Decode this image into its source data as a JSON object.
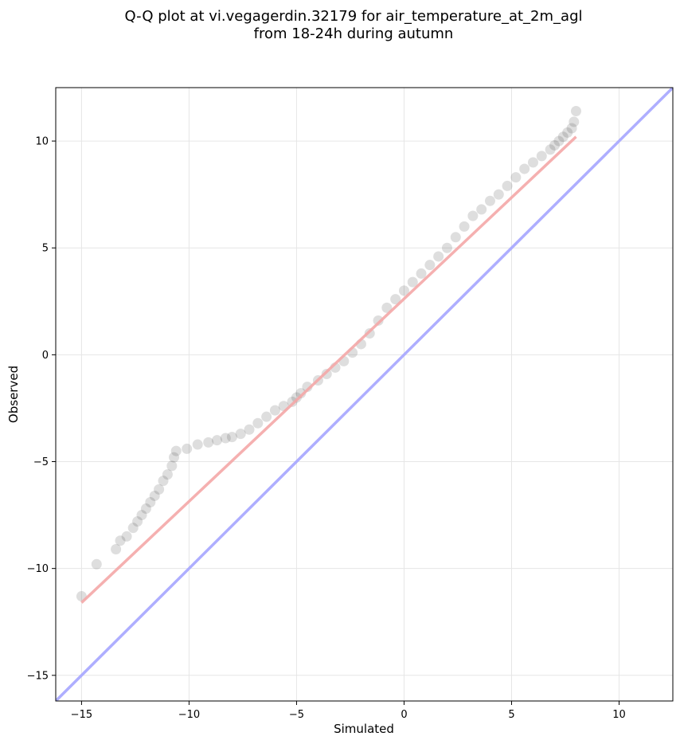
{
  "chart_data": {
    "type": "scatter",
    "title_line1": "Q-Q plot at vi.vegagerdin.32179 for air_temperature_at_2m_agl",
    "title_line2": "from 18-24h during autumn",
    "xlabel": "Simulated",
    "ylabel": "Observed",
    "xlim": [
      -16.2,
      12.5
    ],
    "ylim": [
      -16.2,
      12.5
    ],
    "xticks": [
      -15,
      -10,
      -5,
      0,
      5,
      10
    ],
    "yticks": [
      -15,
      -10,
      -5,
      0,
      5,
      10
    ],
    "xtick_labels": [
      "−15",
      "−10",
      "−5",
      "0",
      "5",
      "10"
    ],
    "ytick_labels": [
      "−15",
      "−10",
      "−5",
      "0",
      "5",
      "10"
    ],
    "grid": true,
    "identity_line_color": "#aaaaff",
    "fit_line_color": "#f4a7a7",
    "marker_color": "#333333",
    "fit_line": {
      "x": [
        -15.0,
        8.0
      ],
      "y": [
        -11.6,
        10.2
      ]
    },
    "identity_line": {
      "x": [
        -16.2,
        12.5
      ],
      "y": [
        -16.2,
        12.5
      ]
    },
    "series": [
      {
        "x": [
          -15.0,
          -14.3,
          -13.4,
          -13.2,
          -12.9,
          -12.6,
          -12.4,
          -12.2,
          -12.0,
          -11.8,
          -11.6,
          -11.4,
          -11.2,
          -11.0,
          -10.8,
          -10.7,
          -10.6,
          -10.1,
          -9.6,
          -9.1,
          -8.7,
          -8.3,
          -8.0,
          -7.6,
          -7.2,
          -6.8,
          -6.4,
          -6.0,
          -5.6,
          -5.2,
          -5.0,
          -4.8,
          -4.5,
          -4.0,
          -3.6,
          -3.2,
          -2.8,
          -2.4,
          -2.0,
          -1.6,
          -1.2,
          -0.8,
          -0.4,
          0.0,
          0.4,
          0.8,
          1.2,
          1.6,
          2.0,
          2.4,
          2.8,
          3.2,
          3.6,
          4.0,
          4.4,
          4.8,
          5.2,
          5.6,
          6.0,
          6.4,
          6.8,
          7.0,
          7.2,
          7.4,
          7.6,
          7.8,
          7.9,
          8.0
        ],
        "y": [
          -11.3,
          -9.8,
          -9.1,
          -8.7,
          -8.5,
          -8.1,
          -7.8,
          -7.5,
          -7.2,
          -6.9,
          -6.6,
          -6.3,
          -5.9,
          -5.6,
          -5.2,
          -4.8,
          -4.5,
          -4.4,
          -4.2,
          -4.1,
          -4.0,
          -3.9,
          -3.85,
          -3.7,
          -3.5,
          -3.2,
          -2.9,
          -2.6,
          -2.4,
          -2.2,
          -2.0,
          -1.8,
          -1.5,
          -1.2,
          -0.9,
          -0.6,
          -0.3,
          0.1,
          0.5,
          1.0,
          1.6,
          2.2,
          2.6,
          3.0,
          3.4,
          3.8,
          4.2,
          4.6,
          5.0,
          5.5,
          6.0,
          6.5,
          6.8,
          7.2,
          7.5,
          7.9,
          8.3,
          8.7,
          9.0,
          9.3,
          9.6,
          9.8,
          10.0,
          10.2,
          10.4,
          10.6,
          10.9,
          11.4
        ]
      }
    ]
  }
}
